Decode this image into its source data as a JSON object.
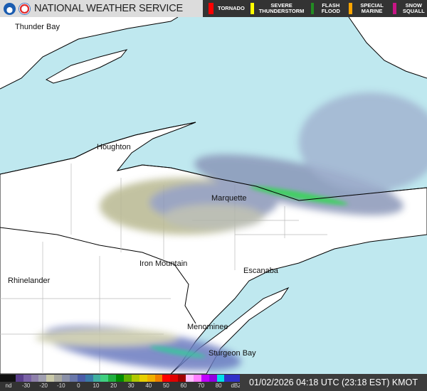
{
  "header": {
    "title": "NATIONAL WEATHER SERVICE",
    "warnings": [
      {
        "label": "TORNADO",
        "color": "#ff0000"
      },
      {
        "label": "SEVERE THUNDERSTORM",
        "color": "#ffff00"
      },
      {
        "label": "FLASH FLOOD",
        "color": "#228b22"
      },
      {
        "label": "SPECIAL MARINE",
        "color": "#ffa500"
      },
      {
        "label": "SNOW SQUALL",
        "color": "#c71585"
      }
    ]
  },
  "map": {
    "cities": [
      "Thunder Bay",
      "Houghton",
      "Marquette",
      "Iron Mountain",
      "Escanaba",
      "Rhinelander",
      "Menominee",
      "Sturgeon Bay"
    ],
    "colors": {
      "water": "#bfe8ef",
      "land": "#ffffff"
    }
  },
  "legend": {
    "ticks": [
      "nd",
      "-30",
      "-20",
      "-10",
      "0",
      "10",
      "20",
      "30",
      "40",
      "50",
      "60",
      "70",
      "80",
      "dBZ"
    ],
    "colors": [
      "#111111",
      "#111111",
      "#5a3f8c",
      "#7a62a6",
      "#8e80aa",
      "#a09fb0",
      "#c8c8a8",
      "#a8a8a0",
      "#8a90a8",
      "#6a78aa",
      "#4a5ca8",
      "#3a7aa8",
      "#40b0a0",
      "#40d080",
      "#20b040",
      "#008a00",
      "#60b000",
      "#b0c800",
      "#e8d000",
      "#f0b000",
      "#f08000",
      "#ff0000",
      "#e00000",
      "#a00000",
      "#ffc0ff",
      "#ff80ff",
      "#c000ff",
      "#9000e0",
      "#00e0e8",
      "#3030c8",
      "#3030c8"
    ],
    "unit": "dBZ"
  },
  "timestamp": "01/02/2026 04:18 UTC (23:18 EST) KMOT"
}
